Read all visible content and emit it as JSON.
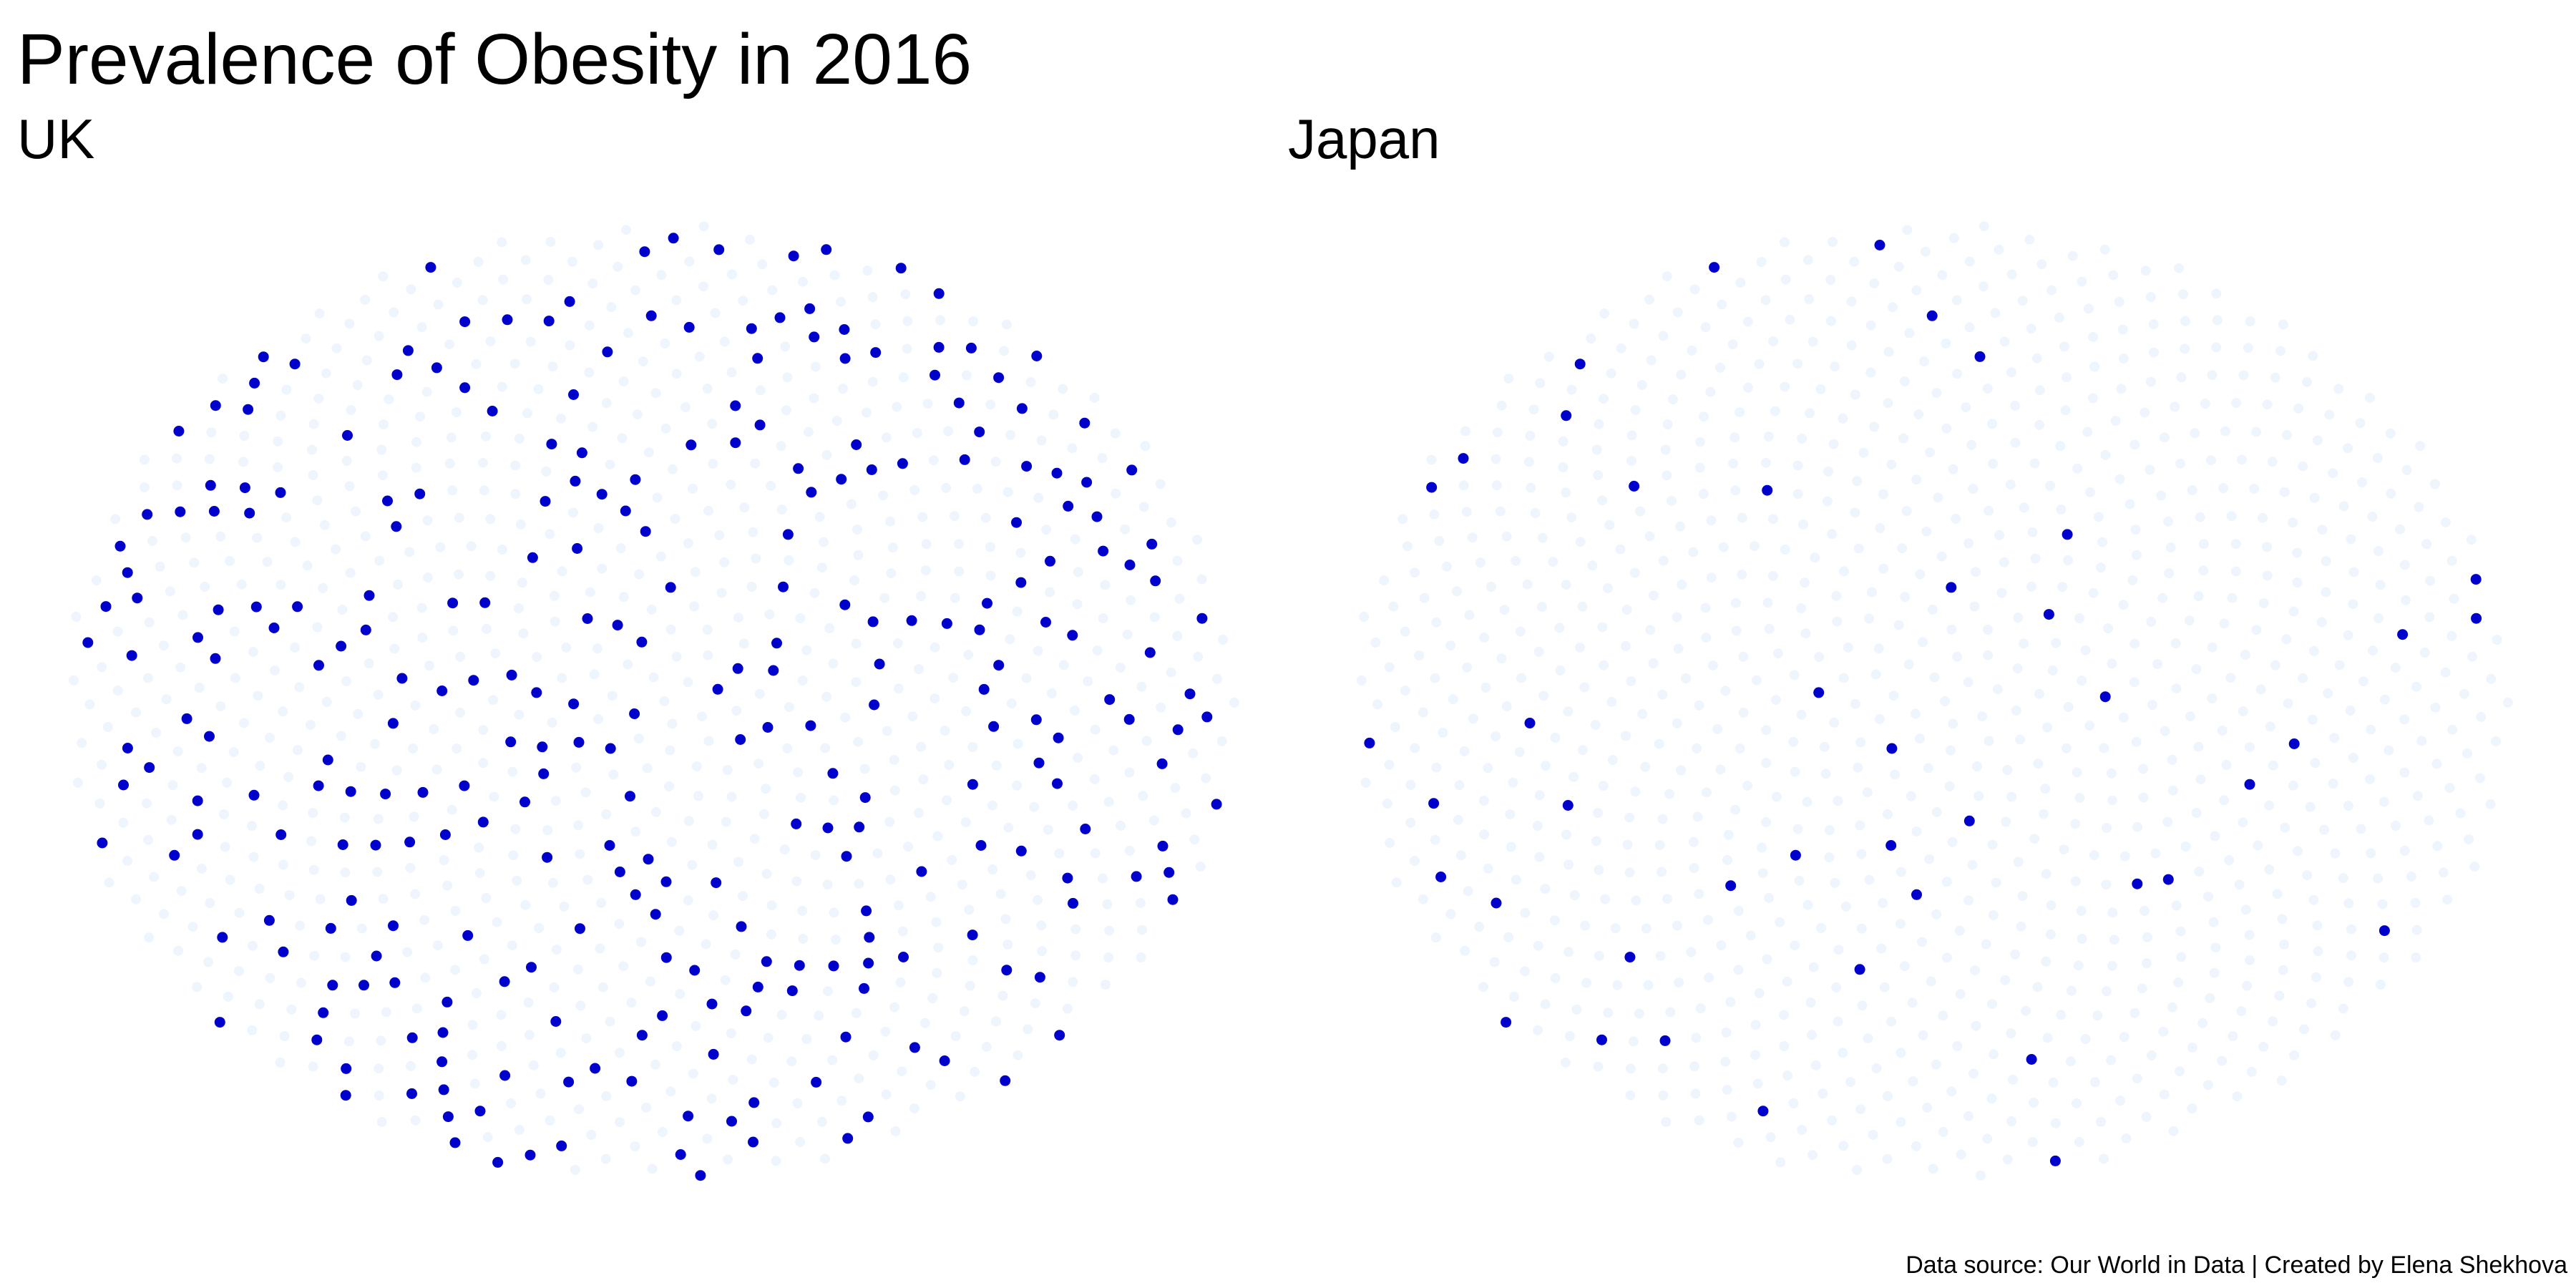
{
  "chart_data": {
    "type": "scatter",
    "title": "Prevalence of Obesity in 2016",
    "caption": "Data source: Our World in Data | Created by Elena Shekhova",
    "legend": "none",
    "grid": false,
    "highlight_color": "#0000CD",
    "background_dot_color": "#EEF5FD",
    "panels": [
      {
        "name": "UK",
        "points_per_hundred": 1000,
        "highlighted_per_thousand": 279
      },
      {
        "name": "Japan",
        "points_per_hundred": 1000,
        "highlighted_per_thousand": 43
      }
    ]
  }
}
